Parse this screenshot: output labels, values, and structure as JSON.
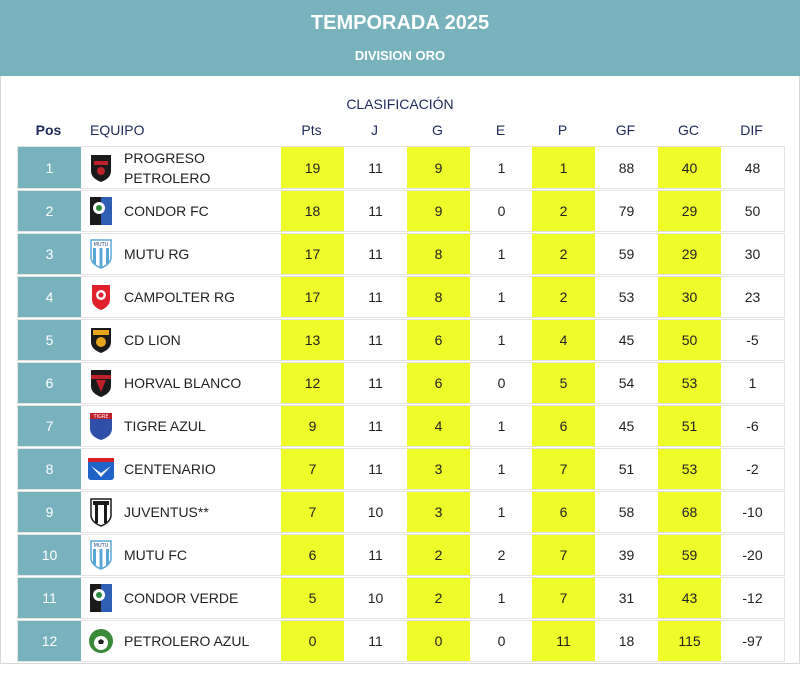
{
  "header": {
    "title": "TEMPORADA 2025",
    "subtitle": "DIVISION ORO"
  },
  "section_title": "CLASIFICACIÓN",
  "columns": {
    "pos": "Pos",
    "team": "EQUIPO",
    "pts": "Pts",
    "j": "J",
    "g": "G",
    "e": "E",
    "p": "P",
    "gf": "GF",
    "gc": "GC",
    "dif": "DIF"
  },
  "colors": {
    "header_bg": "#77b2bd",
    "highlight": "#eefc2a",
    "heading_text": "#1f2a5a"
  },
  "rows": [
    {
      "pos": "1",
      "team": "PROGRESO PETROLERO",
      "logo": "progreso-petrolero-logo",
      "pts": "19",
      "j": "11",
      "g": "9",
      "e": "1",
      "p": "1",
      "gf": "88",
      "gc": "40",
      "dif": "48"
    },
    {
      "pos": "2",
      "team": "CONDOR FC",
      "logo": "condor-fc-logo",
      "pts": "18",
      "j": "11",
      "g": "9",
      "e": "0",
      "p": "2",
      "gf": "79",
      "gc": "29",
      "dif": "50"
    },
    {
      "pos": "3",
      "team": "MUTU RG",
      "logo": "mutu-rg-logo",
      "pts": "17",
      "j": "11",
      "g": "8",
      "e": "1",
      "p": "2",
      "gf": "59",
      "gc": "29",
      "dif": "30"
    },
    {
      "pos": "4",
      "team": "CAMPOLTER RG",
      "logo": "campolter-rg-logo",
      "pts": "17",
      "j": "11",
      "g": "8",
      "e": "1",
      "p": "2",
      "gf": "53",
      "gc": "30",
      "dif": "23"
    },
    {
      "pos": "5",
      "team": "CD LION",
      "logo": "cd-lion-logo",
      "pts": "13",
      "j": "11",
      "g": "6",
      "e": "1",
      "p": "4",
      "gf": "45",
      "gc": "50",
      "dif": "-5"
    },
    {
      "pos": "6",
      "team": "HORVAL BLANCO",
      "logo": "horval-blanco-logo",
      "pts": "12",
      "j": "11",
      "g": "6",
      "e": "0",
      "p": "5",
      "gf": "54",
      "gc": "53",
      "dif": "1"
    },
    {
      "pos": "7",
      "team": "TIGRE AZUL",
      "logo": "tigre-azul-logo",
      "pts": "9",
      "j": "11",
      "g": "4",
      "e": "1",
      "p": "6",
      "gf": "45",
      "gc": "51",
      "dif": "-6"
    },
    {
      "pos": "8",
      "team": "CENTENARIO",
      "logo": "centenario-logo",
      "pts": "7",
      "j": "11",
      "g": "3",
      "e": "1",
      "p": "7",
      "gf": "51",
      "gc": "53",
      "dif": "-2"
    },
    {
      "pos": "9",
      "team": "JUVENTUS**",
      "logo": "juventus-logo",
      "pts": "7",
      "j": "10",
      "g": "3",
      "e": "1",
      "p": "6",
      "gf": "58",
      "gc": "68",
      "dif": "-10"
    },
    {
      "pos": "10",
      "team": "MUTU FC",
      "logo": "mutu-fc-logo",
      "pts": "6",
      "j": "11",
      "g": "2",
      "e": "2",
      "p": "7",
      "gf": "39",
      "gc": "59",
      "dif": "-20"
    },
    {
      "pos": "11",
      "team": "CONDOR VERDE",
      "logo": "condor-verde-logo",
      "pts": "5",
      "j": "10",
      "g": "2",
      "e": "1",
      "p": "7",
      "gf": "31",
      "gc": "43",
      "dif": "-12"
    },
    {
      "pos": "12",
      "team": "PETROLERO AZUL",
      "logo": "petrolero-azul-logo",
      "pts": "0",
      "j": "11",
      "g": "0",
      "e": "0",
      "p": "11",
      "gf": "18",
      "gc": "115",
      "dif": "-97"
    }
  ]
}
